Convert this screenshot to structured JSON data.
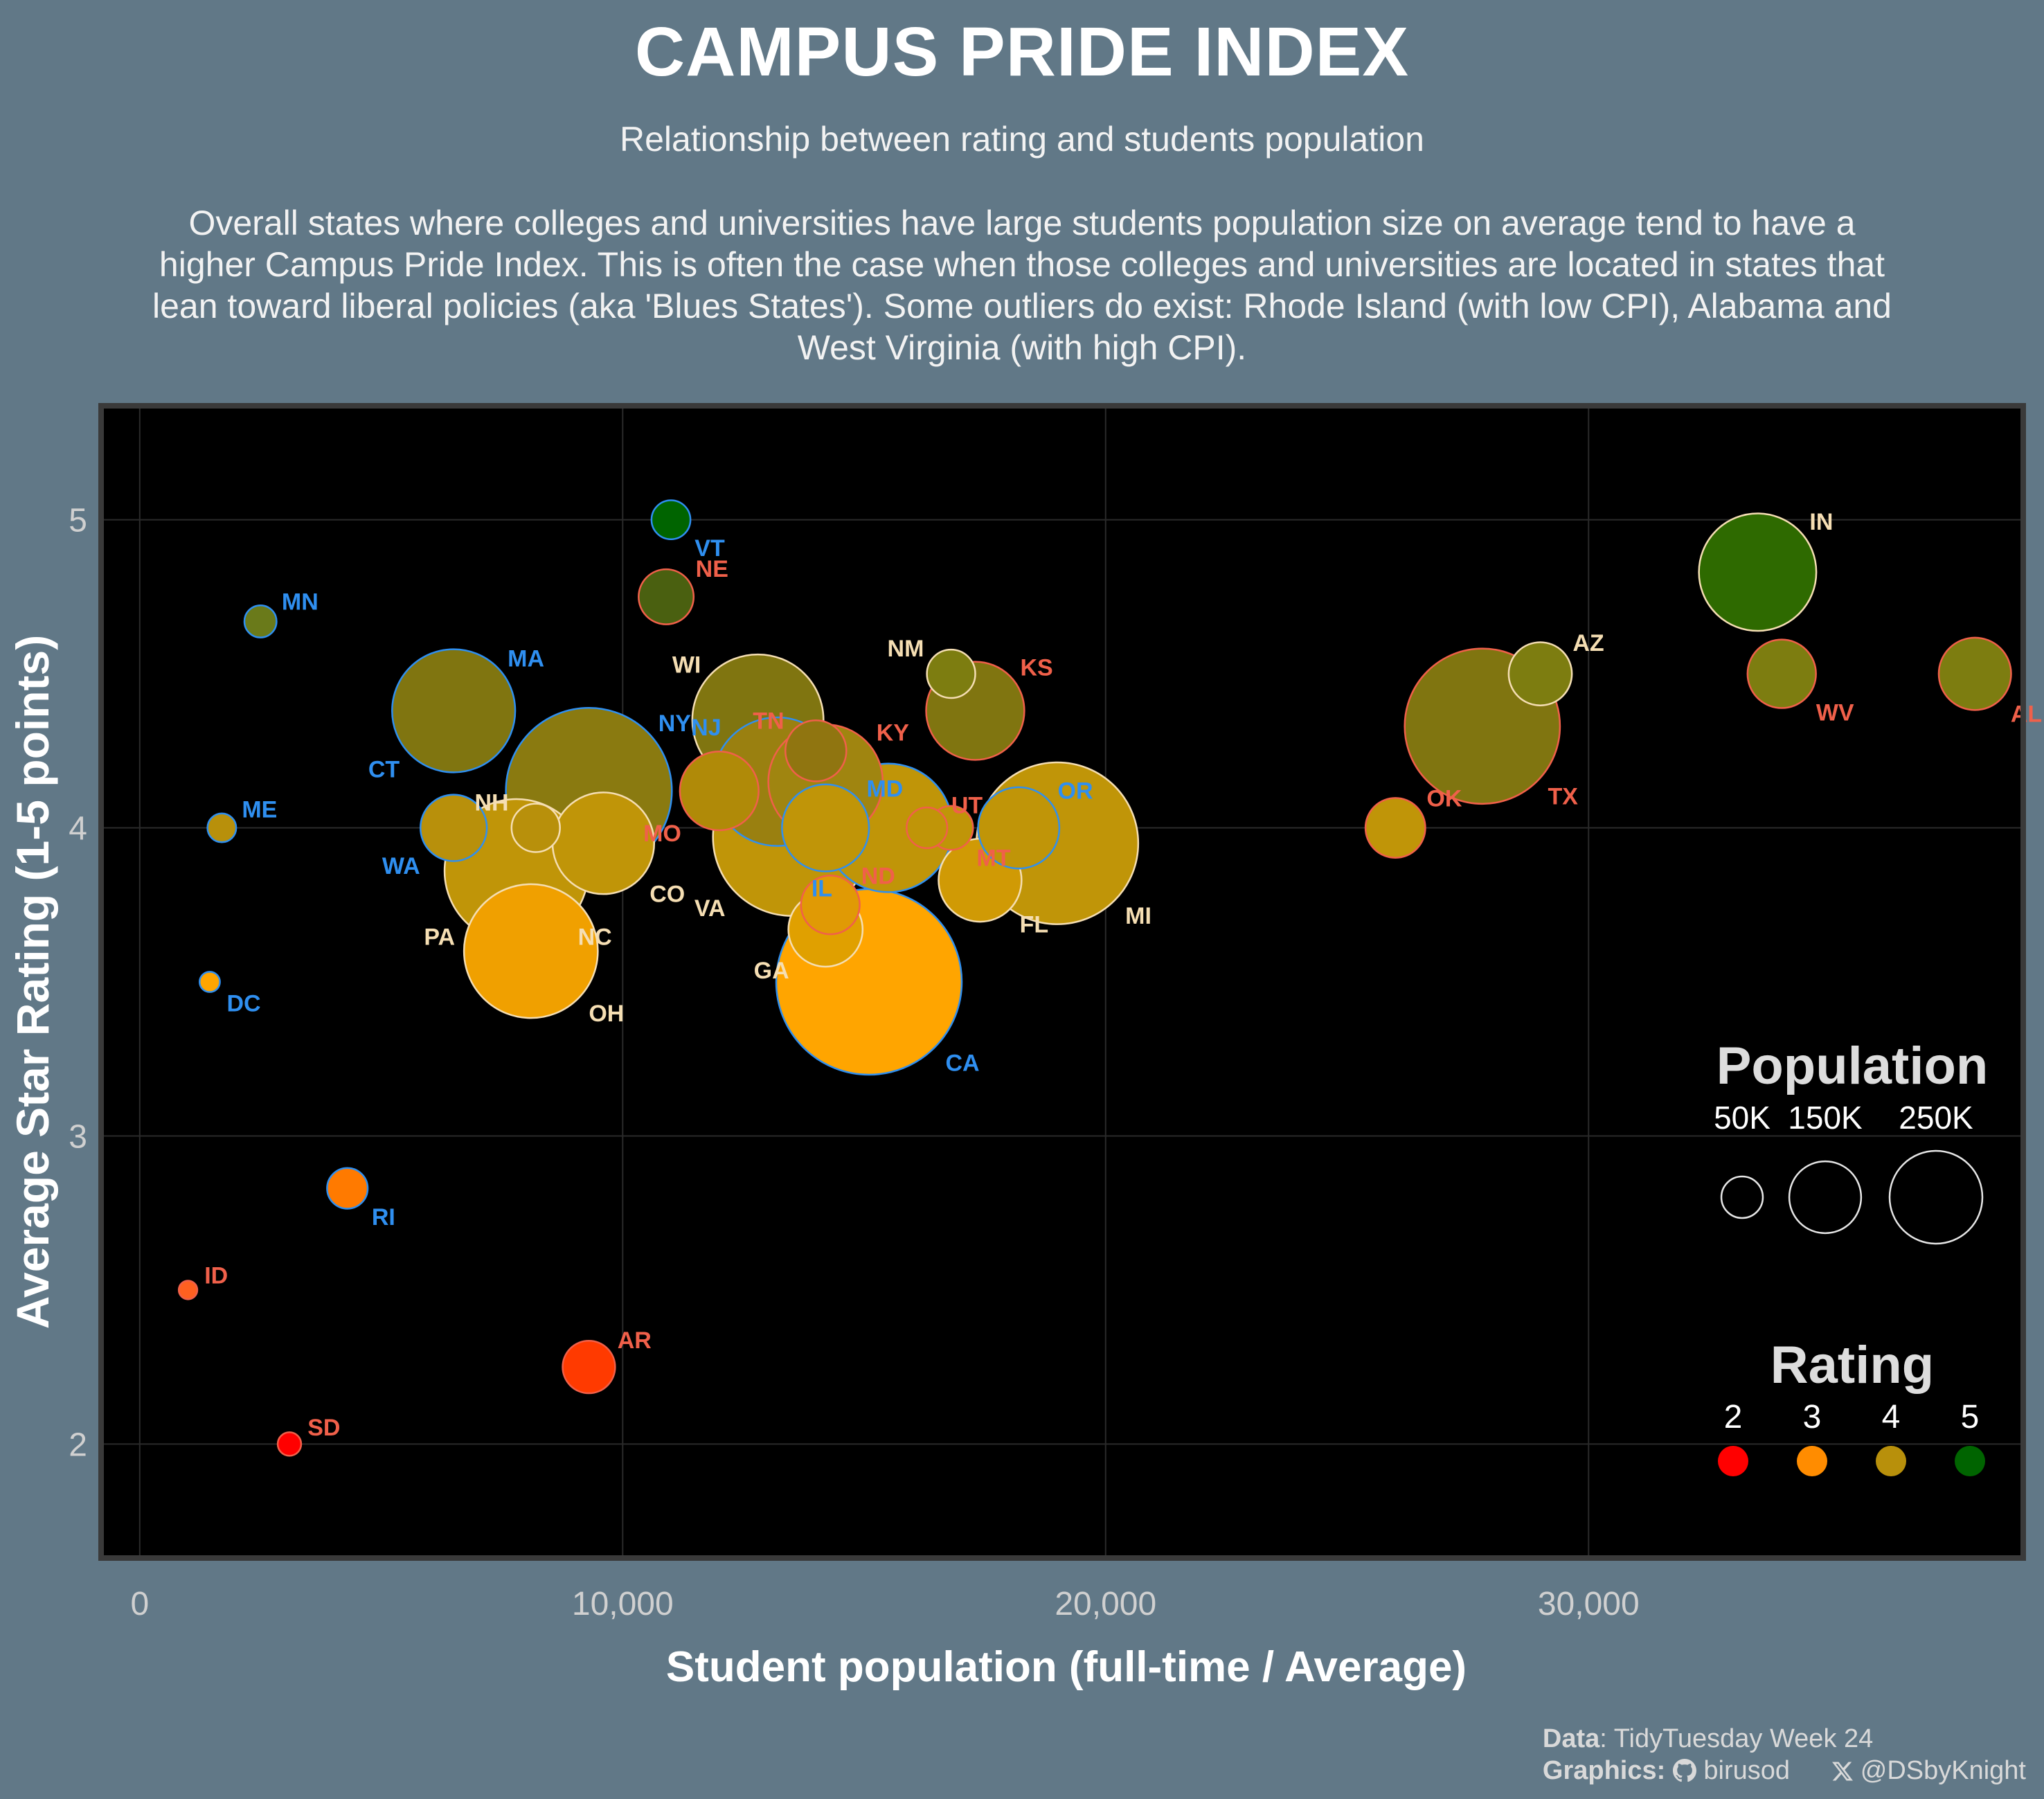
{
  "title": "CAMPUS PRIDE INDEX",
  "subtitle": "Relationship between rating and students population",
  "description": "Overall states where colleges and universities have large students population size on average tend to have a higher Campus Pride Index. This is often the case when those colleges and universities are located in states that lean toward liberal policies (aka 'Blues States'). Some outliers do exist: Rhode Island (with low CPI), Alabama and West Virginia (with high CPI).",
  "caption": {
    "data_label": "Data",
    "data_value": "TidyTuesday Week 24",
    "graphics_label": "Graphics:",
    "github_handle": "birusod",
    "x_handle": "@DSbyKnight",
    "github_icon": "github-icon",
    "x_icon": "x-logo-icon"
  },
  "colors": {
    "background": "#617887",
    "panel": "#000000",
    "grid": "#2a2a2a",
    "rating_2": "#ff0000",
    "rating_3": "#ff8c00",
    "rating_4": "#b8900b",
    "rating_5": "#006400",
    "party_blue": "#2f8ff0",
    "party_red": "#f0604a",
    "party_neutral": "#f5deb3"
  },
  "chart_data": {
    "type": "scatter",
    "xlabel": "Student population (full-time / Average)",
    "ylabel": "Average Star Rating (1-5 points)",
    "xlim": [
      -800,
      39000
    ],
    "ylim": [
      1.63,
      5.37
    ],
    "x_ticks": [
      0,
      10000,
      20000,
      30000
    ],
    "x_tick_labels": [
      "0",
      "10,000",
      "20,000",
      "30,000"
    ],
    "y_ticks": [
      2,
      3,
      4,
      5
    ],
    "y_tick_labels": [
      "2",
      "3",
      "4",
      "5"
    ],
    "grid": true,
    "size_legend": {
      "title": "Population",
      "labels": [
        "50K",
        "150K",
        "250K"
      ],
      "values": [
        50000,
        150000,
        250000
      ]
    },
    "color_legend": {
      "title": "Rating",
      "labels": [
        "2",
        "3",
        "4",
        "5"
      ],
      "colors": [
        "#ff0000",
        "#ff8c00",
        "#b8900b",
        "#006400"
      ]
    },
    "points": [
      {
        "state": "VT",
        "x": 11000,
        "y": 5.0,
        "pop": 11000,
        "fill": "#006400",
        "edge": "blue",
        "label_pos": "below-right"
      },
      {
        "state": "NE",
        "x": 10900,
        "y": 4.75,
        "pop": 22000,
        "fill": "#4a6010",
        "edge": "red",
        "label_pos": "above-right"
      },
      {
        "state": "MN",
        "x": 2500,
        "y": 4.67,
        "pop": 7500,
        "fill": "#6a7a1a",
        "edge": "blue",
        "label_pos": "above-right"
      },
      {
        "state": "IN",
        "x": 33500,
        "y": 4.83,
        "pop": 100000,
        "fill": "#2e6a00",
        "edge": "neutral",
        "label_pos": "above-right"
      },
      {
        "state": "NM",
        "x": 16800,
        "y": 4.5,
        "pop": 17000,
        "fill": "#7d7d10",
        "edge": "neutral",
        "label_pos": "above-left"
      },
      {
        "state": "AZ",
        "x": 29000,
        "y": 4.5,
        "pop": 29000,
        "fill": "#7d7d10",
        "edge": "neutral",
        "label_pos": "above-right"
      },
      {
        "state": "WV",
        "x": 34000,
        "y": 4.5,
        "pop": 34000,
        "fill": "#7d7d10",
        "edge": "red",
        "label_pos": "below-right"
      },
      {
        "state": "AL",
        "x": 38000,
        "y": 4.5,
        "pop": 38000,
        "fill": "#7d7d10",
        "edge": "red",
        "label_pos": "below-right"
      },
      {
        "state": "MA",
        "x": 6500,
        "y": 4.38,
        "pop": 110000,
        "fill": "#807510",
        "edge": "blue",
        "label_pos": "above-right"
      },
      {
        "state": "CT",
        "x": 6500,
        "y": 4.38,
        "pop": 0,
        "fill": "#807510",
        "edge": "blue",
        "label_pos": "below-left"
      },
      {
        "state": "KS",
        "x": 17300,
        "y": 4.38,
        "pop": 70000,
        "fill": "#807510",
        "edge": "red",
        "label_pos": "above-right"
      },
      {
        "state": "WI",
        "x": 12800,
        "y": 4.35,
        "pop": 125000,
        "fill": "#807510",
        "edge": "neutral",
        "label_pos": "above-left"
      },
      {
        "state": "TX",
        "x": 27800,
        "y": 4.33,
        "pop": 175000,
        "fill": "#807510",
        "edge": "red",
        "label_pos": "below-right"
      },
      {
        "state": "TN",
        "x": 14000,
        "y": 4.25,
        "pop": 27000,
        "fill": "#907510",
        "edge": "red",
        "label_pos": "above-left"
      },
      {
        "state": "NY",
        "x": 9300,
        "y": 4.12,
        "pop": 200000,
        "fill": "#8a7a10",
        "edge": "blue",
        "label_pos": "above-right"
      },
      {
        "state": "NJ",
        "x": 13200,
        "y": 4.15,
        "pop": 120000,
        "fill": "#9a8010",
        "edge": "blue",
        "label_pos": "above-left"
      },
      {
        "state": "KY",
        "x": 14200,
        "y": 4.15,
        "pop": 95000,
        "fill": "#a08510",
        "edge": "red",
        "label_pos": "above-right"
      },
      {
        "state": "MO",
        "x": 12000,
        "y": 4.12,
        "pop": 45000,
        "fill": "#b08a08",
        "edge": "red",
        "label_pos": "below-left"
      },
      {
        "state": "ME",
        "x": 1700,
        "y": 4.0,
        "pop": 6000,
        "fill": "#b8900b",
        "edge": "blue",
        "label_pos": "above-right"
      },
      {
        "state": "WA",
        "x": 6500,
        "y": 4.0,
        "pop": 32000,
        "fill": "#b8900b",
        "edge": "blue",
        "label_pos": "below-left"
      },
      {
        "state": "NH",
        "x": 8200,
        "y": 4.0,
        "pop": 17000,
        "fill": "#b8900b",
        "edge": "neutral",
        "label_pos": "above-left"
      },
      {
        "state": "CO",
        "x": 9600,
        "y": 3.95,
        "pop": 75000,
        "fill": "#c09508",
        "edge": "neutral",
        "label_pos": "below-right"
      },
      {
        "state": "NC",
        "x": 7800,
        "y": 3.86,
        "pop": 150000,
        "fill": "#c09508",
        "edge": "neutral",
        "label_pos": "below-right"
      },
      {
        "state": "PA",
        "x": 7800,
        "y": 3.86,
        "pop": 0,
        "fill": "#c09508",
        "edge": "neutral",
        "label_pos": "below-left"
      },
      {
        "state": "VA",
        "x": 13500,
        "y": 3.97,
        "pop": 180000,
        "fill": "#c09508",
        "edge": "neutral",
        "label_pos": "below-left"
      },
      {
        "state": "MD",
        "x": 14200,
        "y": 4.0,
        "pop": 55000,
        "fill": "#c09508",
        "edge": "blue",
        "label_pos": "above-right"
      },
      {
        "state": "IL",
        "x": 15500,
        "y": 4.0,
        "pop": 120000,
        "fill": "#c09508",
        "edge": "blue",
        "label_pos": "below-left"
      },
      {
        "state": "UT",
        "x": 16300,
        "y": 4.0,
        "pop": 12000,
        "fill": "#c09508",
        "edge": "red",
        "label_pos": "above-right"
      },
      {
        "state": "MT",
        "x": 16800,
        "y": 4.0,
        "pop": 14000,
        "fill": "#c09508",
        "edge": "red",
        "label_pos": "below-right"
      },
      {
        "state": "OR",
        "x": 18200,
        "y": 4.0,
        "pop": 48000,
        "fill": "#c09508",
        "edge": "blue",
        "label_pos": "above-right"
      },
      {
        "state": "MI",
        "x": 19000,
        "y": 3.95,
        "pop": 190000,
        "fill": "#c09508",
        "edge": "neutral",
        "label_pos": "below-right"
      },
      {
        "state": "OK",
        "x": 26000,
        "y": 4.0,
        "pop": 26000,
        "fill": "#c09508",
        "edge": "red",
        "label_pos": "above-right"
      },
      {
        "state": "FL",
        "x": 17400,
        "y": 3.83,
        "pop": 50000,
        "fill": "#d09a05",
        "edge": "neutral",
        "label_pos": "below-right"
      },
      {
        "state": "ND",
        "x": 14300,
        "y": 3.75,
        "pop": 25000,
        "fill": "#e09a05",
        "edge": "red",
        "label_pos": "above-right"
      },
      {
        "state": "GA",
        "x": 14200,
        "y": 3.67,
        "pop": 40000,
        "fill": "#e0a000",
        "edge": "neutral",
        "label_pos": "below-left"
      },
      {
        "state": "OH",
        "x": 8100,
        "y": 3.6,
        "pop": 130000,
        "fill": "#f0a000",
        "edge": "neutral",
        "label_pos": "below-right"
      },
      {
        "state": "CA",
        "x": 15100,
        "y": 3.5,
        "pop": 250000,
        "fill": "#ffa500",
        "edge": "blue",
        "label_pos": "below-right"
      },
      {
        "state": "DC",
        "x": 1450,
        "y": 3.5,
        "pop": 3000,
        "fill": "#ffa500",
        "edge": "blue",
        "label_pos": "below-right"
      },
      {
        "state": "RI",
        "x": 4300,
        "y": 2.83,
        "pop": 12000,
        "fill": "#ff7a00",
        "edge": "blue",
        "label_pos": "below-right"
      },
      {
        "state": "ID",
        "x": 1000,
        "y": 2.5,
        "pop": 2500,
        "fill": "#ff6020",
        "edge": "red",
        "label_pos": "above-right"
      },
      {
        "state": "AR",
        "x": 9300,
        "y": 2.25,
        "pop": 20000,
        "fill": "#ff3a00",
        "edge": "red",
        "label_pos": "above-right"
      },
      {
        "state": "SD",
        "x": 3100,
        "y": 2.0,
        "pop": 4000,
        "fill": "#ff0000",
        "edge": "red",
        "label_pos": "above-right"
      }
    ]
  }
}
